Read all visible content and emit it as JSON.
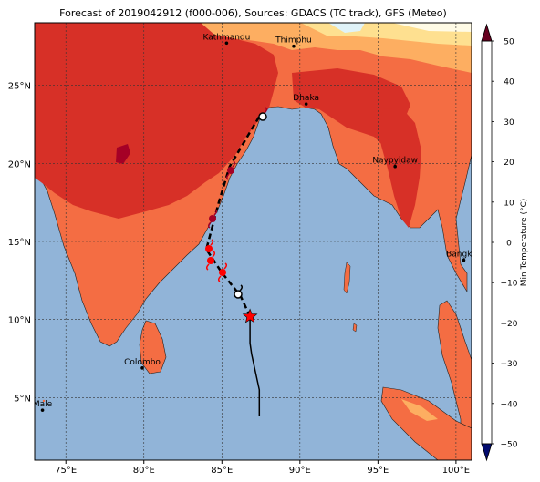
{
  "title": "Forecast of 2019042912 (f000-006), Sources: GDACS (TC track), GFS (Meteo)",
  "map": {
    "lon_ticks": [
      {
        "v": 75,
        "label": "75°E"
      },
      {
        "v": 80,
        "label": "80°E"
      },
      {
        "v": 85,
        "label": "85°E"
      },
      {
        "v": 90,
        "label": "90°E"
      },
      {
        "v": 95,
        "label": "95°E"
      },
      {
        "v": 100,
        "label": "100°E"
      }
    ],
    "lat_ticks": [
      {
        "v": 5,
        "label": "5°N"
      },
      {
        "v": 10,
        "label": "10°N"
      },
      {
        "v": 15,
        "label": "15°N"
      },
      {
        "v": 20,
        "label": "20°N"
      },
      {
        "v": 25,
        "label": "25°N"
      }
    ],
    "cities": [
      {
        "name": "Kathmandu",
        "lon": 85.3,
        "lat": 27.7
      },
      {
        "name": "Thimphu",
        "lon": 89.6,
        "lat": 27.5
      },
      {
        "name": "Dhaka",
        "lon": 90.4,
        "lat": 23.8
      },
      {
        "name": "Naypyidaw",
        "lon": 96.1,
        "lat": 19.8
      },
      {
        "name": "Bangkok",
        "lon": 100.5,
        "lat": 13.8
      },
      {
        "name": "Colombo",
        "lon": 79.9,
        "lat": 6.9
      },
      {
        "name": "Male",
        "lon": 73.5,
        "lat": 4.2
      }
    ],
    "tc_past_track": [
      [
        86.8,
        8.5
      ],
      [
        86.9,
        7.8
      ],
      [
        87.4,
        5.5
      ],
      [
        87.4,
        3.8
      ]
    ],
    "tc_forecast_track": [
      [
        86.8,
        10.2
      ],
      [
        86.2,
        11.5
      ],
      [
        85.0,
        13.0
      ],
      [
        84.0,
        14.5
      ],
      [
        84.8,
        17.5
      ],
      [
        85.5,
        19.8
      ],
      [
        86.8,
        22.0
      ],
      [
        87.4,
        23.0
      ]
    ],
    "tc_current_position": [
      86.8,
      10.2
    ]
  },
  "colorbar": {
    "label": "Min Temperature (°C)",
    "ticks": [
      50,
      40,
      30,
      20,
      10,
      0,
      -10,
      -20,
      -30,
      -40,
      -50
    ],
    "colors": [
      "#313695",
      "#4575b4",
      "#74add1",
      "#abd9e9",
      "#e0f3f8",
      "#fee090",
      "#fdae61",
      "#f46d43",
      "#d73027",
      "#a50026"
    ]
  }
}
